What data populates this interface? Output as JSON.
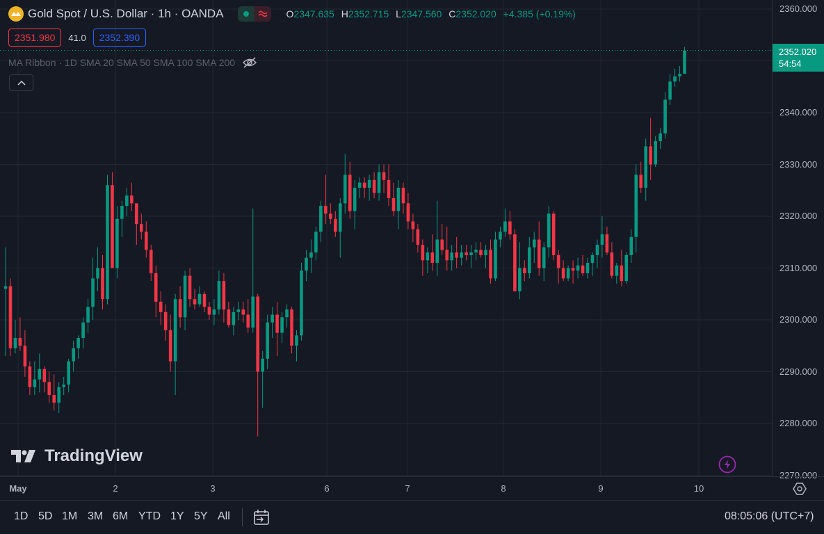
{
  "header": {
    "title": "Gold Spot / U.S. Dollar · 1h · OANDA",
    "ohlc": [
      {
        "label": "O",
        "value": "2347.635"
      },
      {
        "label": "H",
        "value": "2352.715"
      },
      {
        "label": "L",
        "value": "2347.560"
      },
      {
        "label": "C",
        "value": "2352.020"
      }
    ],
    "change": "+4.385 (+0.19%)"
  },
  "bid_ask": {
    "bid": "2351.980",
    "spread": "41.0",
    "ask": "2352.390"
  },
  "legend": {
    "name": "MA Ribbon",
    "params": "· 1D SMA 20 SMA 50 SMA 100 SMA 200"
  },
  "price_axis": {
    "ticks": [
      "2360.000",
      "2340.000",
      "2330.000",
      "2320.000",
      "2310.000",
      "2300.000",
      "2290.000",
      "2280.000",
      "2270.000"
    ],
    "current_price": "2352.020",
    "countdown": "54:54"
  },
  "time_axis": {
    "ticks": [
      "May",
      "2",
      "3",
      "6",
      "7",
      "8",
      "9",
      "10"
    ]
  },
  "watermark": {
    "text": "TradingView"
  },
  "bottom_bar": {
    "ranges": [
      "1D",
      "5D",
      "1M",
      "3M",
      "6M",
      "YTD",
      "1Y",
      "5Y",
      "All"
    ],
    "clock": "08:05:06 (UTC+7)"
  },
  "colors": {
    "background": "#151924",
    "grid": "#222631",
    "up": "#089981",
    "down": "#f23645",
    "text": "#d1d4dc",
    "axis_text": "#b2b5be"
  },
  "chart_data": {
    "type": "candlestick",
    "ylim": [
      2270,
      2362
    ],
    "grid": true,
    "ohlc": [
      [
        2306.0,
        2314.0,
        2293.0,
        2306.5
      ],
      [
        2306.5,
        2308.0,
        2293.0,
        2294.5
      ],
      [
        2294.5,
        2300.0,
        2293.5,
        2296.5
      ],
      [
        2296.5,
        2300.5,
        2294.0,
        2295.0
      ],
      [
        2295.0,
        2298.0,
        2289.0,
        2291.0
      ],
      [
        2291.0,
        2292.0,
        2285.5,
        2287.0
      ],
      [
        2287.0,
        2292.0,
        2285.5,
        2288.5
      ],
      [
        2288.5,
        2293.5,
        2286.0,
        2290.5
      ],
      [
        2290.5,
        2291.0,
        2286.0,
        2288.0
      ],
      [
        2288.0,
        2290.0,
        2284.0,
        2285.5
      ],
      [
        2285.5,
        2289.5,
        2282.5,
        2284.0
      ],
      [
        2284.0,
        2288.0,
        2282.0,
        2287.0
      ],
      [
        2287.0,
        2289.0,
        2285.5,
        2287.5
      ],
      [
        2287.5,
        2292.5,
        2286.0,
        2292.0
      ],
      [
        2292.0,
        2296.0,
        2290.0,
        2294.5
      ],
      [
        2294.5,
        2297.0,
        2292.5,
        2296.5
      ],
      [
        2296.5,
        2300.5,
        2294.5,
        2299.5
      ],
      [
        2299.5,
        2304.0,
        2297.5,
        2302.5
      ],
      [
        2302.5,
        2312.0,
        2300.0,
        2308.0
      ],
      [
        2308.0,
        2314.0,
        2305.5,
        2310.0
      ],
      [
        2310.0,
        2312.5,
        2302.0,
        2304.0
      ],
      [
        2304.0,
        2328.0,
        2303.0,
        2326.0
      ],
      [
        2326.0,
        2328.5,
        2310.0,
        2310.0
      ],
      [
        2310.0,
        2322.0,
        2308.0,
        2319.5
      ],
      [
        2319.5,
        2323.0,
        2316.0,
        2322.0
      ],
      [
        2322.0,
        2325.5,
        2320.0,
        2324.0
      ],
      [
        2324.0,
        2326.5,
        2321.0,
        2322.5
      ],
      [
        2322.5,
        2322.5,
        2314.5,
        2318.5
      ],
      [
        2318.5,
        2320.5,
        2315.5,
        2317.0
      ],
      [
        2317.0,
        2319.0,
        2312.0,
        2313.5
      ],
      [
        2313.5,
        2314.5,
        2307.5,
        2309.0
      ],
      [
        2309.0,
        2310.5,
        2300.5,
        2303.5
      ],
      [
        2303.5,
        2305.5,
        2299.0,
        2301.5
      ],
      [
        2301.5,
        2303.0,
        2296.0,
        2298.0
      ],
      [
        2298.0,
        2301.0,
        2290.0,
        2292.0
      ],
      [
        2292.0,
        2305.0,
        2285.5,
        2304.0
      ],
      [
        2304.0,
        2306.5,
        2298.5,
        2300.5
      ],
      [
        2300.5,
        2309.5,
        2298.0,
        2308.5
      ],
      [
        2308.5,
        2310.0,
        2302.5,
        2304.0
      ],
      [
        2304.0,
        2306.0,
        2302.0,
        2303.0
      ],
      [
        2303.0,
        2306.5,
        2302.5,
        2305.0
      ],
      [
        2305.0,
        2305.5,
        2301.5,
        2302.5
      ],
      [
        2302.5,
        2303.5,
        2300.0,
        2301.0
      ],
      [
        2301.0,
        2304.0,
        2299.0,
        2302.0
      ],
      [
        2302.0,
        2309.5,
        2301.0,
        2307.5
      ],
      [
        2307.5,
        2309.0,
        2299.5,
        2302.0
      ],
      [
        2302.0,
        2303.5,
        2298.5,
        2299.0
      ],
      [
        2299.0,
        2302.5,
        2297.0,
        2301.5
      ],
      [
        2301.5,
        2303.5,
        2300.0,
        2302.0
      ],
      [
        2302.0,
        2303.5,
        2299.5,
        2301.0
      ],
      [
        2301.0,
        2304.0,
        2297.5,
        2298.5
      ],
      [
        2298.5,
        2321.5,
        2297.5,
        2304.5
      ],
      [
        2304.5,
        2305.0,
        2277.5,
        2290.0
      ],
      [
        2290.0,
        2294.0,
        2283.0,
        2292.5
      ],
      [
        2292.5,
        2301.0,
        2290.5,
        2299.5
      ],
      [
        2299.5,
        2302.5,
        2296.5,
        2301.0
      ],
      [
        2301.0,
        2303.5,
        2293.0,
        2297.5
      ],
      [
        2297.5,
        2301.5,
        2295.5,
        2300.5
      ],
      [
        2300.5,
        2303.0,
        2298.5,
        2302.0
      ],
      [
        2302.0,
        2302.5,
        2293.5,
        2295.0
      ],
      [
        2295.0,
        2298.0,
        2292.0,
        2297.0
      ],
      [
        2297.0,
        2311.0,
        2296.0,
        2309.5
      ],
      [
        2309.5,
        2313.5,
        2307.5,
        2312.0
      ],
      [
        2312.0,
        2315.5,
        2309.0,
        2313.0
      ],
      [
        2313.0,
        2318.0,
        2311.5,
        2317.0
      ],
      [
        2317.0,
        2323.0,
        2315.0,
        2322.0
      ],
      [
        2322.0,
        2328.0,
        2318.5,
        2320.5
      ],
      [
        2320.5,
        2322.5,
        2318.5,
        2319.5
      ],
      [
        2319.5,
        2321.0,
        2316.0,
        2317.0
      ],
      [
        2317.0,
        2323.5,
        2312.0,
        2322.5
      ],
      [
        2322.5,
        2332.0,
        2320.5,
        2328.0
      ],
      [
        2328.0,
        2330.5,
        2319.5,
        2321.0
      ],
      [
        2321.0,
        2327.0,
        2317.5,
        2325.5
      ],
      [
        2325.5,
        2327.5,
        2323.5,
        2326.5
      ],
      [
        2326.5,
        2327.5,
        2323.5,
        2325.5
      ],
      [
        2325.5,
        2328.0,
        2323.0,
        2327.0
      ],
      [
        2327.0,
        2328.5,
        2323.5,
        2324.5
      ],
      [
        2324.5,
        2330.0,
        2323.0,
        2328.5
      ],
      [
        2328.5,
        2330.0,
        2324.5,
        2327.0
      ],
      [
        2327.0,
        2330.0,
        2322.0,
        2323.5
      ],
      [
        2323.5,
        2326.5,
        2320.0,
        2321.0
      ],
      [
        2321.0,
        2327.0,
        2317.5,
        2325.5
      ],
      [
        2325.5,
        2326.5,
        2320.5,
        2322.5
      ],
      [
        2322.5,
        2324.5,
        2317.5,
        2319.0
      ],
      [
        2319.0,
        2320.5,
        2315.0,
        2317.5
      ],
      [
        2317.5,
        2318.5,
        2313.0,
        2314.5
      ],
      [
        2314.5,
        2315.5,
        2308.5,
        2311.5
      ],
      [
        2311.5,
        2314.0,
        2309.0,
        2313.0
      ],
      [
        2313.0,
        2316.5,
        2309.5,
        2311.0
      ],
      [
        2311.0,
        2323.0,
        2308.5,
        2315.5
      ],
      [
        2315.5,
        2318.5,
        2312.5,
        2313.5
      ],
      [
        2313.5,
        2318.0,
        2309.5,
        2311.5
      ],
      [
        2311.5,
        2314.5,
        2309.5,
        2313.0
      ],
      [
        2313.0,
        2316.0,
        2310.0,
        2312.0
      ],
      [
        2312.0,
        2314.5,
        2310.5,
        2313.0
      ],
      [
        2313.0,
        2314.5,
        2311.5,
        2312.5
      ],
      [
        2312.5,
        2314.5,
        2310.0,
        2313.0
      ],
      [
        2313.0,
        2315.0,
        2311.5,
        2313.5
      ],
      [
        2313.5,
        2315.0,
        2312.0,
        2312.5
      ],
      [
        2312.5,
        2314.5,
        2310.0,
        2313.5
      ],
      [
        2313.5,
        2315.5,
        2307.0,
        2308.0
      ],
      [
        2308.0,
        2317.0,
        2307.5,
        2315.5
      ],
      [
        2315.5,
        2318.0,
        2314.0,
        2317.0
      ],
      [
        2317.0,
        2321.5,
        2316.0,
        2319.0
      ],
      [
        2319.0,
        2321.0,
        2315.5,
        2316.5
      ],
      [
        2316.5,
        2317.5,
        2305.5,
        2305.5
      ],
      [
        2305.5,
        2315.0,
        2304.0,
        2310.0
      ],
      [
        2310.0,
        2311.5,
        2307.5,
        2309.0
      ],
      [
        2309.0,
        2316.0,
        2308.0,
        2314.0
      ],
      [
        2314.0,
        2317.0,
        2311.0,
        2315.5
      ],
      [
        2315.5,
        2319.0,
        2308.5,
        2310.0
      ],
      [
        2310.0,
        2315.0,
        2307.5,
        2314.0
      ],
      [
        2314.0,
        2322.0,
        2312.0,
        2320.5
      ],
      [
        2320.5,
        2321.0,
        2311.5,
        2312.5
      ],
      [
        2312.5,
        2313.5,
        2307.0,
        2310.0
      ],
      [
        2310.0,
        2311.5,
        2307.5,
        2308.0
      ],
      [
        2308.0,
        2310.5,
        2307.5,
        2310.0
      ],
      [
        2310.0,
        2311.5,
        2307.0,
        2309.5
      ],
      [
        2309.5,
        2312.0,
        2308.0,
        2310.5
      ],
      [
        2310.5,
        2312.5,
        2308.5,
        2309.0
      ],
      [
        2309.0,
        2312.0,
        2308.0,
        2311.0
      ],
      [
        2311.0,
        2313.0,
        2308.5,
        2312.5
      ],
      [
        2312.5,
        2315.5,
        2310.0,
        2314.5
      ],
      [
        2314.5,
        2320.0,
        2312.0,
        2316.5
      ],
      [
        2316.5,
        2318.0,
        2312.5,
        2313.0
      ],
      [
        2313.0,
        2315.0,
        2308.0,
        2308.5
      ],
      [
        2308.5,
        2311.0,
        2307.0,
        2310.5
      ],
      [
        2310.5,
        2313.5,
        2306.5,
        2307.5
      ],
      [
        2307.5,
        2313.0,
        2307.0,
        2312.5
      ],
      [
        2312.5,
        2317.5,
        2311.0,
        2316.0
      ],
      [
        2316.0,
        2330.0,
        2313.0,
        2328.0
      ],
      [
        2328.0,
        2330.5,
        2324.5,
        2325.5
      ],
      [
        2325.5,
        2335.0,
        2323.0,
        2333.5
      ],
      [
        2333.5,
        2339.0,
        2327.0,
        2330.0
      ],
      [
        2330.0,
        2335.5,
        2329.5,
        2334.5
      ],
      [
        2334.5,
        2337.0,
        2333.0,
        2336.0
      ],
      [
        2336.0,
        2344.0,
        2335.0,
        2342.5
      ],
      [
        2342.5,
        2347.5,
        2341.5,
        2346.0
      ],
      [
        2346.0,
        2348.5,
        2345.0,
        2347.0
      ],
      [
        2347.0,
        2349.0,
        2346.0,
        2347.5
      ],
      [
        2347.5,
        2352.7,
        2347.5,
        2352.0
      ]
    ]
  }
}
